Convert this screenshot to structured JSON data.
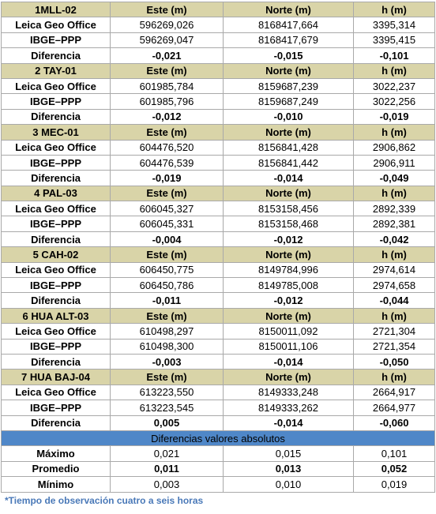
{
  "columns": [
    "Este (m)",
    "Norte (m)",
    "h (m)"
  ],
  "row_labels": {
    "leica": "Leica Geo Office",
    "ibge": "IBGE–PPP",
    "diff": "Diferencia"
  },
  "stations": [
    {
      "name": "1MLL-02",
      "leica": [
        "596269,026",
        "8168417,664",
        "3395,314"
      ],
      "ibge": [
        "596269,047",
        "8168417,679",
        "3395,415"
      ],
      "diff": [
        "-0,021",
        "-0,015",
        "-0,101"
      ]
    },
    {
      "name": "2 TAY-01",
      "leica": [
        "601985,784",
        "8159687,239",
        "3022,237"
      ],
      "ibge": [
        "601985,796",
        "8159687,249",
        "3022,256"
      ],
      "diff": [
        "-0,012",
        "-0,010",
        "-0,019"
      ]
    },
    {
      "name": "3 MEC-01",
      "leica": [
        "604476,520",
        "8156841,428",
        "2906,862"
      ],
      "ibge": [
        "604476,539",
        "8156841,442",
        "2906,911"
      ],
      "diff": [
        "-0,019",
        "-0,014",
        "-0,049"
      ]
    },
    {
      "name": "4 PAL-03",
      "leica": [
        "606045,327",
        "8153158,456",
        "2892,339"
      ],
      "ibge": [
        "606045,331",
        "8153158,468",
        "2892,381"
      ],
      "diff": [
        "-0,004",
        "-0,012",
        "-0,042"
      ]
    },
    {
      "name": "5 CAH-02",
      "leica": [
        "606450,775",
        "8149784,996",
        "2974,614"
      ],
      "ibge": [
        "606450,786",
        "8149785,008",
        "2974,658"
      ],
      "diff": [
        "-0,011",
        "-0,012",
        "-0,044"
      ]
    },
    {
      "name": "6 HUA ALT-03",
      "leica": [
        "610498,297",
        "8150011,092",
        "2721,304"
      ],
      "ibge": [
        "610498,300",
        "8150011,106",
        "2721,354"
      ],
      "diff": [
        "-0,003",
        "-0,014",
        "-0,050"
      ]
    },
    {
      "name": "7 HUA BAJ-04",
      "leica": [
        "613223,550",
        "8149333,248",
        "2664,917"
      ],
      "ibge": [
        "613223,545",
        "8149333,262",
        "2664,977"
      ],
      "diff": [
        "0,005",
        "-0,014",
        "-0,060"
      ]
    }
  ],
  "summary": {
    "title": "Diferencias valores absolutos",
    "rows": [
      {
        "label": "Máximo",
        "values": [
          "0,021",
          "0,015",
          "0,101"
        ],
        "bold": false
      },
      {
        "label": "Promedio",
        "values": [
          "0,011",
          "0,013",
          "0,052"
        ],
        "bold": true
      },
      {
        "label": "Mínimo",
        "values": [
          "0,003",
          "0,010",
          "0,019"
        ],
        "bold": false
      }
    ]
  },
  "footnote": "*Tiempo de observación cuatro a seis horas",
  "colors": {
    "header_bg": "#d9d4a8",
    "summary_header_bg": "#4f87c8",
    "footnote": "#4a79b8",
    "grid": "#a9a9a9"
  }
}
